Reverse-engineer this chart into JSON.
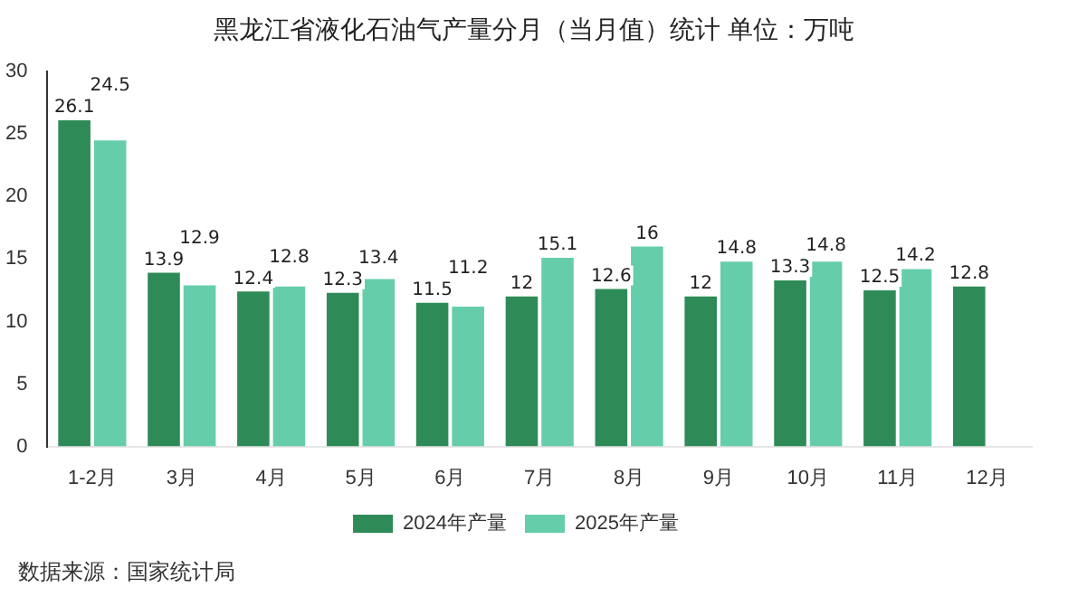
{
  "chart_data": {
    "type": "bar",
    "title": "黑龙江省液化石油气产量分月（当月值）统计  单位：万吨",
    "categories": [
      "1-2月",
      "3月",
      "4月",
      "5月",
      "6月",
      "7月",
      "8月",
      "9月",
      "10月",
      "11月",
      "12月"
    ],
    "series": [
      {
        "name": "2024年产量",
        "color": "#2e8b57",
        "values": [
          26.1,
          13.9,
          12.4,
          12.3,
          11.5,
          12,
          12.6,
          12,
          13.3,
          12.5,
          12.8
        ]
      },
      {
        "name": "2025年产量",
        "color": "#66cdaa",
        "values": [
          24.5,
          12.9,
          12.8,
          13.4,
          11.2,
          15.1,
          16,
          14.8,
          14.8,
          14.2,
          null
        ]
      }
    ],
    "ylim": [
      0,
      30
    ],
    "yticks": [
      0,
      5,
      10,
      15,
      20,
      25,
      30
    ],
    "grid": false,
    "legend": "bottom",
    "data_labels": true,
    "annotations": [
      "数据来源：国家统计局"
    ]
  }
}
